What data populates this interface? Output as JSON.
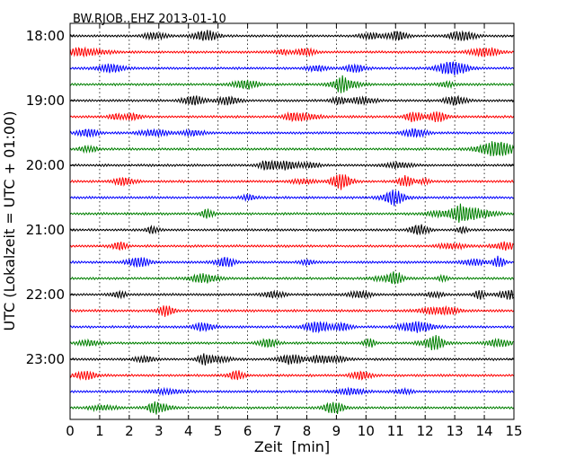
{
  "chart_data": {
    "type": "line",
    "subtype": "dayplot",
    "title": "BW.RJOB..EHZ 2013-01-10",
    "xlabel": "Zeit  [min]",
    "ylabel": "UTC (Lokalzeit = UTC + 01:00)",
    "xlim": [
      0,
      15
    ],
    "x_ticks": [
      "0",
      "1",
      "2",
      "3",
      "4",
      "5",
      "6",
      "7",
      "8",
      "9",
      "10",
      "11",
      "12",
      "13",
      "14",
      "15"
    ],
    "y_ticks": [
      "18:00",
      "19:00",
      "20:00",
      "21:00",
      "22:00",
      "23:00"
    ],
    "traces_per_hour": 4,
    "trace_count": 24,
    "trace_colors": [
      "#000000",
      "#ff0000",
      "#0000ff",
      "#008000"
    ],
    "grid": "vertical dotted at each minute"
  }
}
